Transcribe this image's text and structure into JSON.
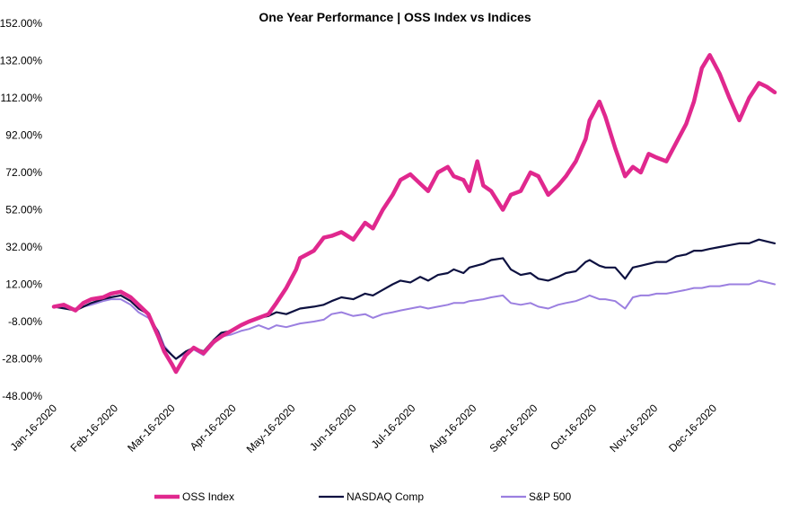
{
  "chart_data": {
    "type": "line",
    "title": "One Year Performance | OSS Index  vs Indices",
    "xlabel": "",
    "ylabel": "",
    "ylim": [
      -48,
      152
    ],
    "y_ticks": [
      "152.00%",
      "132.00%",
      "112.00%",
      "92.00%",
      "72.00%",
      "52.00%",
      "32.00%",
      "12.00%",
      "-8.00%",
      "-28.00%",
      "-48.00%"
    ],
    "y_tick_values": [
      152,
      132,
      112,
      92,
      72,
      52,
      32,
      12,
      -8,
      -28,
      -48
    ],
    "x_ticks": [
      "Jan-16-2020",
      "Feb-16-2020",
      "Mar-16-2020",
      "Apr-16-2020",
      "May-16-2020",
      "Jun-16-2020",
      "Jul-16-2020",
      "Aug-16-2020",
      "Sep-16-2020",
      "Oct-16-2020",
      "Nov-16-2020",
      "Dec-16-2020"
    ],
    "x_range": [
      "2020-01-16",
      "2021-01-16"
    ],
    "grid": false,
    "legend": "bottom",
    "series": [
      {
        "name": "OSS Index",
        "color": "#e0288e",
        "points": [
          [
            "2020-01-16",
            0
          ],
          [
            "2020-01-21",
            1
          ],
          [
            "2020-01-27",
            -2
          ],
          [
            "2020-01-31",
            2
          ],
          [
            "2020-02-04",
            4
          ],
          [
            "2020-02-10",
            5
          ],
          [
            "2020-02-14",
            7
          ],
          [
            "2020-02-19",
            8
          ],
          [
            "2020-02-24",
            5
          ],
          [
            "2020-02-28",
            1
          ],
          [
            "2020-03-04",
            -4
          ],
          [
            "2020-03-09",
            -16
          ],
          [
            "2020-03-12",
            -24
          ],
          [
            "2020-03-16",
            -31
          ],
          [
            "2020-03-18",
            -35
          ],
          [
            "2020-03-23",
            -26
          ],
          [
            "2020-03-27",
            -22
          ],
          [
            "2020-04-01",
            -25
          ],
          [
            "2020-04-06",
            -19
          ],
          [
            "2020-04-10",
            -16
          ],
          [
            "2020-04-15",
            -13
          ],
          [
            "2020-04-20",
            -10
          ],
          [
            "2020-04-24",
            -8
          ],
          [
            "2020-04-29",
            -6
          ],
          [
            "2020-05-04",
            -4
          ],
          [
            "2020-05-08",
            2
          ],
          [
            "2020-05-13",
            10
          ],
          [
            "2020-05-18",
            20
          ],
          [
            "2020-05-20",
            26
          ],
          [
            "2020-05-27",
            30
          ],
          [
            "2020-06-01",
            37
          ],
          [
            "2020-06-05",
            38
          ],
          [
            "2020-06-10",
            40
          ],
          [
            "2020-06-16",
            36
          ],
          [
            "2020-06-22",
            45
          ],
          [
            "2020-06-26",
            42
          ],
          [
            "2020-07-01",
            52
          ],
          [
            "2020-07-06",
            60
          ],
          [
            "2020-07-10",
            68
          ],
          [
            "2020-07-15",
            71
          ],
          [
            "2020-07-20",
            66
          ],
          [
            "2020-07-24",
            62
          ],
          [
            "2020-07-29",
            72
          ],
          [
            "2020-08-03",
            75
          ],
          [
            "2020-08-06",
            70
          ],
          [
            "2020-08-11",
            68
          ],
          [
            "2020-08-14",
            62
          ],
          [
            "2020-08-18",
            78
          ],
          [
            "2020-08-21",
            65
          ],
          [
            "2020-08-25",
            62
          ],
          [
            "2020-08-31",
            52
          ],
          [
            "2020-09-04",
            60
          ],
          [
            "2020-09-09",
            62
          ],
          [
            "2020-09-14",
            72
          ],
          [
            "2020-09-18",
            70
          ],
          [
            "2020-09-23",
            60
          ],
          [
            "2020-09-28",
            65
          ],
          [
            "2020-10-02",
            70
          ],
          [
            "2020-10-07",
            78
          ],
          [
            "2020-10-12",
            90
          ],
          [
            "2020-10-14",
            100
          ],
          [
            "2020-10-19",
            110
          ],
          [
            "2020-10-22",
            102
          ],
          [
            "2020-10-27",
            85
          ],
          [
            "2020-11-01",
            70
          ],
          [
            "2020-11-05",
            75
          ],
          [
            "2020-11-09",
            72
          ],
          [
            "2020-11-13",
            82
          ],
          [
            "2020-11-17",
            80
          ],
          [
            "2020-11-22",
            78
          ],
          [
            "2020-11-27",
            88
          ],
          [
            "2020-12-02",
            98
          ],
          [
            "2020-12-06",
            110
          ],
          [
            "2020-12-10",
            128
          ],
          [
            "2020-12-14",
            135
          ],
          [
            "2020-12-19",
            125
          ],
          [
            "2020-12-24",
            112
          ],
          [
            "2020-12-29",
            100
          ],
          [
            "2021-01-03",
            112
          ],
          [
            "2021-01-08",
            120
          ],
          [
            "2021-01-12",
            118
          ],
          [
            "2021-01-16",
            115
          ]
        ]
      },
      {
        "name": "NASDAQ Comp",
        "color": "#0d1140",
        "points": [
          [
            "2020-01-16",
            0
          ],
          [
            "2020-01-27",
            -2
          ],
          [
            "2020-02-04",
            2
          ],
          [
            "2020-02-10",
            4
          ],
          [
            "2020-02-14",
            5
          ],
          [
            "2020-02-19",
            6
          ],
          [
            "2020-02-24",
            3
          ],
          [
            "2020-02-28",
            -1
          ],
          [
            "2020-03-04",
            -4
          ],
          [
            "2020-03-09",
            -14
          ],
          [
            "2020-03-12",
            -22
          ],
          [
            "2020-03-16",
            -26
          ],
          [
            "2020-03-18",
            -28
          ],
          [
            "2020-03-23",
            -24
          ],
          [
            "2020-03-27",
            -22
          ],
          [
            "2020-04-01",
            -24
          ],
          [
            "2020-04-06",
            -18
          ],
          [
            "2020-04-10",
            -14
          ],
          [
            "2020-04-15",
            -13
          ],
          [
            "2020-04-20",
            -10
          ],
          [
            "2020-04-24",
            -8
          ],
          [
            "2020-04-29",
            -6
          ],
          [
            "2020-05-04",
            -5
          ],
          [
            "2020-05-08",
            -3
          ],
          [
            "2020-05-13",
            -4
          ],
          [
            "2020-05-20",
            -1
          ],
          [
            "2020-05-27",
            0
          ],
          [
            "2020-06-01",
            1
          ],
          [
            "2020-06-05",
            3
          ],
          [
            "2020-06-10",
            5
          ],
          [
            "2020-06-16",
            4
          ],
          [
            "2020-06-22",
            7
          ],
          [
            "2020-06-26",
            6
          ],
          [
            "2020-07-01",
            9
          ],
          [
            "2020-07-06",
            12
          ],
          [
            "2020-07-10",
            14
          ],
          [
            "2020-07-15",
            13
          ],
          [
            "2020-07-20",
            16
          ],
          [
            "2020-07-24",
            14
          ],
          [
            "2020-07-29",
            17
          ],
          [
            "2020-08-03",
            18
          ],
          [
            "2020-08-06",
            20
          ],
          [
            "2020-08-11",
            18
          ],
          [
            "2020-08-14",
            21
          ],
          [
            "2020-08-21",
            23
          ],
          [
            "2020-08-25",
            25
          ],
          [
            "2020-08-31",
            26
          ],
          [
            "2020-09-04",
            20
          ],
          [
            "2020-09-09",
            17
          ],
          [
            "2020-09-14",
            18
          ],
          [
            "2020-09-18",
            15
          ],
          [
            "2020-09-23",
            14
          ],
          [
            "2020-09-28",
            16
          ],
          [
            "2020-10-02",
            18
          ],
          [
            "2020-10-07",
            19
          ],
          [
            "2020-10-12",
            24
          ],
          [
            "2020-10-14",
            25
          ],
          [
            "2020-10-19",
            22
          ],
          [
            "2020-10-22",
            21
          ],
          [
            "2020-10-27",
            21
          ],
          [
            "2020-11-01",
            15
          ],
          [
            "2020-11-05",
            21
          ],
          [
            "2020-11-09",
            22
          ],
          [
            "2020-11-13",
            23
          ],
          [
            "2020-11-17",
            24
          ],
          [
            "2020-11-22",
            24
          ],
          [
            "2020-11-27",
            27
          ],
          [
            "2020-12-02",
            28
          ],
          [
            "2020-12-06",
            30
          ],
          [
            "2020-12-10",
            30
          ],
          [
            "2020-12-14",
            31
          ],
          [
            "2020-12-19",
            32
          ],
          [
            "2020-12-24",
            33
          ],
          [
            "2020-12-29",
            34
          ],
          [
            "2021-01-03",
            34
          ],
          [
            "2021-01-08",
            36
          ],
          [
            "2021-01-12",
            35
          ],
          [
            "2021-01-16",
            34
          ]
        ]
      },
      {
        "name": "S&P 500",
        "color": "#9b7fe0",
        "points": [
          [
            "2020-01-16",
            0
          ],
          [
            "2020-01-27",
            -1
          ],
          [
            "2020-02-04",
            1
          ],
          [
            "2020-02-10",
            3
          ],
          [
            "2020-02-14",
            4
          ],
          [
            "2020-02-19",
            4
          ],
          [
            "2020-02-24",
            1
          ],
          [
            "2020-02-28",
            -3
          ],
          [
            "2020-03-04",
            -6
          ],
          [
            "2020-03-09",
            -13
          ],
          [
            "2020-03-12",
            -21
          ],
          [
            "2020-03-16",
            -26
          ],
          [
            "2020-03-18",
            -28
          ],
          [
            "2020-03-23",
            -25
          ],
          [
            "2020-03-27",
            -23
          ],
          [
            "2020-04-01",
            -26
          ],
          [
            "2020-04-06",
            -20
          ],
          [
            "2020-04-10",
            -16
          ],
          [
            "2020-04-15",
            -15
          ],
          [
            "2020-04-20",
            -13
          ],
          [
            "2020-04-24",
            -12
          ],
          [
            "2020-04-29",
            -10
          ],
          [
            "2020-05-04",
            -12
          ],
          [
            "2020-05-08",
            -10
          ],
          [
            "2020-05-13",
            -11
          ],
          [
            "2020-05-20",
            -9
          ],
          [
            "2020-05-27",
            -8
          ],
          [
            "2020-06-01",
            -7
          ],
          [
            "2020-06-05",
            -4
          ],
          [
            "2020-06-10",
            -3
          ],
          [
            "2020-06-16",
            -5
          ],
          [
            "2020-06-22",
            -4
          ],
          [
            "2020-06-26",
            -6
          ],
          [
            "2020-07-01",
            -4
          ],
          [
            "2020-07-06",
            -3
          ],
          [
            "2020-07-10",
            -2
          ],
          [
            "2020-07-15",
            -1
          ],
          [
            "2020-07-20",
            0
          ],
          [
            "2020-07-24",
            -1
          ],
          [
            "2020-07-29",
            0
          ],
          [
            "2020-08-03",
            1
          ],
          [
            "2020-08-06",
            2
          ],
          [
            "2020-08-11",
            2
          ],
          [
            "2020-08-14",
            3
          ],
          [
            "2020-08-21",
            4
          ],
          [
            "2020-08-25",
            5
          ],
          [
            "2020-08-31",
            6
          ],
          [
            "2020-09-04",
            2
          ],
          [
            "2020-09-09",
            1
          ],
          [
            "2020-09-14",
            2
          ],
          [
            "2020-09-18",
            0
          ],
          [
            "2020-09-23",
            -1
          ],
          [
            "2020-09-28",
            1
          ],
          [
            "2020-10-02",
            2
          ],
          [
            "2020-10-07",
            3
          ],
          [
            "2020-10-12",
            5
          ],
          [
            "2020-10-14",
            6
          ],
          [
            "2020-10-19",
            4
          ],
          [
            "2020-10-22",
            4
          ],
          [
            "2020-10-27",
            3
          ],
          [
            "2020-11-01",
            -1
          ],
          [
            "2020-11-05",
            5
          ],
          [
            "2020-11-09",
            6
          ],
          [
            "2020-11-13",
            6
          ],
          [
            "2020-11-17",
            7
          ],
          [
            "2020-11-22",
            7
          ],
          [
            "2020-11-27",
            8
          ],
          [
            "2020-12-02",
            9
          ],
          [
            "2020-12-06",
            10
          ],
          [
            "2020-12-10",
            10
          ],
          [
            "2020-12-14",
            11
          ],
          [
            "2020-12-19",
            11
          ],
          [
            "2020-12-24",
            12
          ],
          [
            "2020-12-29",
            12
          ],
          [
            "2021-01-03",
            12
          ],
          [
            "2021-01-08",
            14
          ],
          [
            "2021-01-12",
            13
          ],
          [
            "2021-01-16",
            12
          ]
        ]
      }
    ]
  }
}
